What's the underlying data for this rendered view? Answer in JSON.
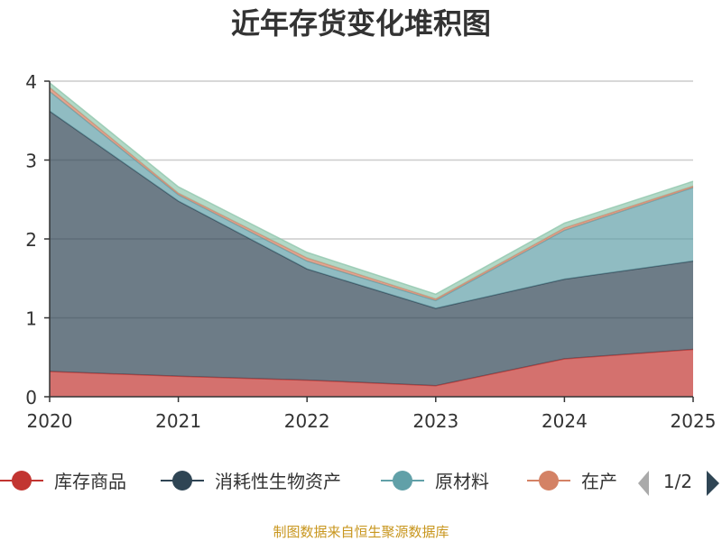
{
  "chart_data": {
    "type": "area",
    "stacked": true,
    "title": "近年存货变化堆积图",
    "x": [
      "2020",
      "2021",
      "2022",
      "2023",
      "2024",
      "2025"
    ],
    "ylim": [
      0,
      4
    ],
    "yticks": [
      "0",
      "1",
      "2",
      "3",
      "4"
    ],
    "ylabel": "",
    "grid": true,
    "legend_position": "bottom",
    "series": [
      {
        "name": "库存商品",
        "color": "#c23531",
        "values": [
          0.32,
          0.26,
          0.21,
          0.14,
          0.48,
          0.6
        ]
      },
      {
        "name": "消耗性生物资产",
        "color": "#2f4554",
        "values": [
          3.3,
          2.22,
          1.41,
          0.98,
          1.01,
          1.12
        ]
      },
      {
        "name": "原材料",
        "color": "#61a0a8",
        "values": [
          0.25,
          0.08,
          0.1,
          0.1,
          0.62,
          0.93
        ]
      },
      {
        "name": "在产",
        "color": "#d48265",
        "values": [
          0.05,
          0.02,
          0.04,
          0.02,
          0.03,
          0.02
        ]
      },
      {
        "name": "",
        "color": "#91c7ae",
        "values": [
          0.06,
          0.08,
          0.07,
          0.06,
          0.06,
          0.06
        ]
      }
    ]
  },
  "legend": {
    "page_label": "1/2",
    "prev_icon": "triangle-left-icon",
    "next_icon": "triangle-right-icon"
  },
  "source": "制图数据来自恒生聚源数据库"
}
